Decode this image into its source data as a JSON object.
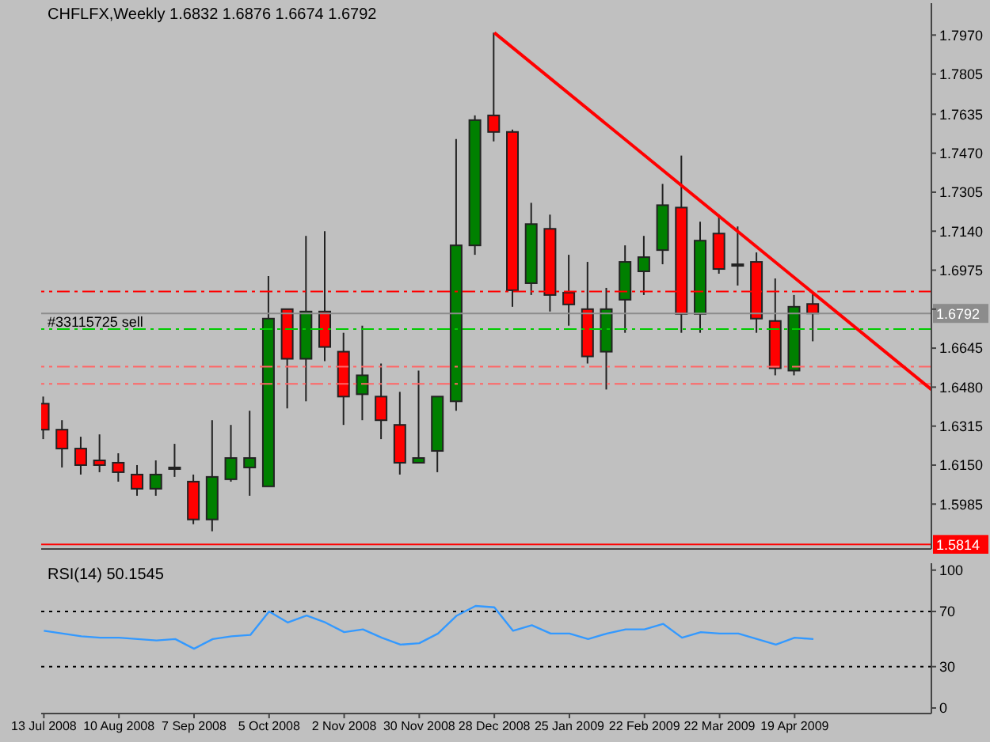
{
  "chart_data": [
    {
      "type": "candlestick",
      "title": "CHFLFX,Weekly  1.6832 1.6876 1.6674 1.6792",
      "x": [
        "2008-07-13",
        "2008-07-20",
        "2008-07-27",
        "2008-08-03",
        "2008-08-10",
        "2008-08-17",
        "2008-08-24",
        "2008-08-31",
        "2008-09-07",
        "2008-09-14",
        "2008-09-21",
        "2008-09-28",
        "2008-10-05",
        "2008-10-12",
        "2008-10-19",
        "2008-10-26",
        "2008-11-02",
        "2008-11-09",
        "2008-11-16",
        "2008-11-23",
        "2008-11-30",
        "2008-12-07",
        "2008-12-14",
        "2008-12-21",
        "2008-12-28",
        "2009-01-04",
        "2009-01-11",
        "2009-01-18",
        "2009-01-25",
        "2009-02-01",
        "2009-02-08",
        "2009-02-15",
        "2009-02-22",
        "2009-03-01",
        "2009-03-08",
        "2009-03-15",
        "2009-03-22",
        "2009-03-29",
        "2009-04-05",
        "2009-04-12",
        "2009-04-19",
        "2009-04-26"
      ],
      "ohlc": [
        [
          1.641,
          1.644,
          1.626,
          1.63
        ],
        [
          1.63,
          1.634,
          1.614,
          1.622
        ],
        [
          1.622,
          1.627,
          1.611,
          1.615
        ],
        [
          1.617,
          1.628,
          1.612,
          1.615
        ],
        [
          1.616,
          1.62,
          1.608,
          1.612
        ],
        [
          1.611,
          1.615,
          1.602,
          1.605
        ],
        [
          1.605,
          1.617,
          1.602,
          1.611
        ],
        [
          1.614,
          1.624,
          1.61,
          1.614
        ],
        [
          1.608,
          1.611,
          1.59,
          1.592
        ],
        [
          1.592,
          1.634,
          1.587,
          1.61
        ],
        [
          1.609,
          1.632,
          1.608,
          1.618
        ],
        [
          1.614,
          1.638,
          1.602,
          1.618
        ],
        [
          1.606,
          1.695,
          1.606,
          1.677
        ],
        [
          1.681,
          1.681,
          1.639,
          1.66
        ],
        [
          1.66,
          1.712,
          1.642,
          1.68
        ],
        [
          1.68,
          1.714,
          1.659,
          1.665
        ],
        [
          1.663,
          1.671,
          1.632,
          1.644
        ],
        [
          1.645,
          1.674,
          1.634,
          1.653
        ],
        [
          1.644,
          1.658,
          1.626,
          1.634
        ],
        [
          1.632,
          1.646,
          1.611,
          1.616
        ],
        [
          1.616,
          1.655,
          1.616,
          1.618
        ],
        [
          1.621,
          1.644,
          1.612,
          1.644
        ],
        [
          1.642,
          1.753,
          1.638,
          1.708
        ],
        [
          1.708,
          1.763,
          1.704,
          1.761
        ],
        [
          1.763,
          1.798,
          1.752,
          1.756
        ],
        [
          1.756,
          1.757,
          1.682,
          1.689
        ],
        [
          1.692,
          1.726,
          1.687,
          1.717
        ],
        [
          1.715,
          1.721,
          1.68,
          1.687
        ],
        [
          1.688,
          1.704,
          1.674,
          1.683
        ],
        [
          1.681,
          1.701,
          1.658,
          1.661
        ],
        [
          1.663,
          1.69,
          1.647,
          1.681
        ],
        [
          1.685,
          1.708,
          1.671,
          1.701
        ],
        [
          1.697,
          1.712,
          1.687,
          1.703
        ],
        [
          1.706,
          1.734,
          1.7,
          1.725
        ],
        [
          1.724,
          1.746,
          1.671,
          1.679
        ],
        [
          1.679,
          1.718,
          1.671,
          1.71
        ],
        [
          1.713,
          1.721,
          1.696,
          1.698
        ],
        [
          1.7,
          1.716,
          1.691,
          1.7
        ],
        [
          1.701,
          1.705,
          1.671,
          1.677
        ],
        [
          1.676,
          1.694,
          1.653,
          1.656
        ],
        [
          1.655,
          1.687,
          1.653,
          1.682
        ],
        [
          1.6832,
          1.6876,
          1.6674,
          1.6792
        ]
      ],
      "colors": [
        "#ff0000",
        "#ff0000",
        "#ff0000",
        "#ff0000",
        "#ff0000",
        "#ff0000",
        "#008000",
        "#008000",
        "#ff0000",
        "#008000",
        "#008000",
        "#008000",
        "#008000",
        "#ff0000",
        "#008000",
        "#ff0000",
        "#ff0000",
        "#008000",
        "#ff0000",
        "#ff0000",
        "#008000",
        "#008000",
        "#008000",
        "#008000",
        "#ff0000",
        "#ff0000",
        "#008000",
        "#ff0000",
        "#ff0000",
        "#ff0000",
        "#008000",
        "#008000",
        "#008000",
        "#008000",
        "#ff0000",
        "#008000",
        "#ff0000",
        "#008000",
        "#ff0000",
        "#ff0000",
        "#008000",
        "#ff0000"
      ],
      "series": [
        {
          "type": "line",
          "x": [
            "2008-12-28",
            "2009-06-09"
          ],
          "values": [
            1.798,
            1.647
          ],
          "color": "#ff0000"
        }
      ],
      "xlim": [
        "2008-07-12",
        "2009-06-09"
      ],
      "ylim": [
        1.5795,
        1.8105
      ],
      "yticks": [
        {
          "value": 1.797,
          "label": "1.7970"
        },
        1.7805,
        1.7635,
        {
          "value": 1.747,
          "label": "1.7470"
        },
        1.7305,
        {
          "value": 1.714,
          "label": "1.7140"
        },
        1.6975,
        {
          "value": 1.681,
          "label": null
        },
        1.6645,
        {
          "value": 1.648,
          "label": "1.6480"
        },
        1.6315,
        {
          "value": 1.615,
          "label": "1.6150"
        },
        1.5985
      ],
      "ref_lines": [
        {
          "axis": "y",
          "value": 1.6885,
          "color": "#ff0000",
          "line_style": "dashed"
        },
        {
          "axis": "y",
          "value": 1.6792,
          "label": "#33115725 sell",
          "color": "#8c8c8c",
          "line_style": "solid"
        },
        {
          "axis": "y",
          "value": 1.6726,
          "color": "#00cc00",
          "line_style": "dashed"
        },
        {
          "axis": "y",
          "value": 1.6567,
          "color": "#ff6666",
          "line_style": "dashed"
        },
        {
          "axis": "y",
          "value": 1.6494,
          "color": "#ff6666",
          "line_style": "dashed"
        },
        {
          "axis": "y",
          "value": 1.5814,
          "color": "#ff0000",
          "line_style": "solid"
        }
      ],
      "annotations": [
        {
          "text": "1.6792",
          "y": 1.6792
        },
        {
          "text": "1.5814",
          "y": 1.5814
        }
      ],
      "tick_labels": "y"
    },
    {
      "type": "line",
      "title": "RSI(14) 50.1545",
      "x": [
        "2008-07-13",
        "2008-07-20",
        "2008-07-27",
        "2008-08-03",
        "2008-08-10",
        "2008-08-17",
        "2008-08-24",
        "2008-08-31",
        "2008-09-07",
        "2008-09-14",
        "2008-09-21",
        "2008-09-28",
        "2008-10-05",
        "2008-10-12",
        "2008-10-19",
        "2008-10-26",
        "2008-11-02",
        "2008-11-09",
        "2008-11-16",
        "2008-11-23",
        "2008-11-30",
        "2008-12-07",
        "2008-12-14",
        "2008-12-21",
        "2008-12-28",
        "2009-01-04",
        "2009-01-11",
        "2009-01-18",
        "2009-01-25",
        "2009-02-01",
        "2009-02-08",
        "2009-02-15",
        "2009-02-22",
        "2009-03-01",
        "2009-03-08",
        "2009-03-15",
        "2009-03-22",
        "2009-03-29",
        "2009-04-05",
        "2009-04-12",
        "2009-04-19",
        "2009-04-26"
      ],
      "values": [
        56,
        54,
        52,
        51,
        51,
        50,
        49,
        50,
        43,
        50,
        52,
        53,
        70,
        62,
        67,
        62,
        55,
        57,
        51,
        46,
        47,
        54,
        67,
        74,
        73,
        56,
        60,
        54,
        54,
        50,
        54,
        57,
        57,
        61,
        51,
        55,
        54,
        54,
        50,
        46,
        51,
        50
      ],
      "color": "#3399ff",
      "xlim": [
        "2008-07-12",
        "2009-06-09"
      ],
      "xticks": [
        {
          "value": "2008-07-13",
          "label": "13 Jul 2008"
        },
        {
          "value": "2008-08-10",
          "label": "10 Aug 2008"
        },
        {
          "value": "2008-09-07",
          "label": "7 Sep 2008"
        },
        {
          "value": "2008-10-05",
          "label": "5 Oct 2008"
        },
        {
          "value": "2008-11-02",
          "label": "2 Nov 2008"
        },
        {
          "value": "2008-11-30",
          "label": "30 Nov 2008"
        },
        {
          "value": "2008-12-28",
          "label": "28 Dec 2008"
        },
        {
          "value": "2009-01-25",
          "label": "25 Jan 2009"
        },
        {
          "value": "2009-02-22",
          "label": "22 Feb 2009"
        },
        {
          "value": "2009-03-22",
          "label": "22 Mar 2009"
        },
        {
          "value": "2009-04-19",
          "label": "19 Apr 2009"
        }
      ],
      "ylim": [
        -4,
        105
      ],
      "yticks": [
        0,
        30,
        70,
        100
      ],
      "ref_lines": [
        {
          "axis": "y",
          "value": 70,
          "color": "#000000",
          "line_style": "dotted"
        },
        {
          "axis": "y",
          "value": 30,
          "color": "#000000",
          "line_style": "dotted"
        }
      ]
    }
  ]
}
